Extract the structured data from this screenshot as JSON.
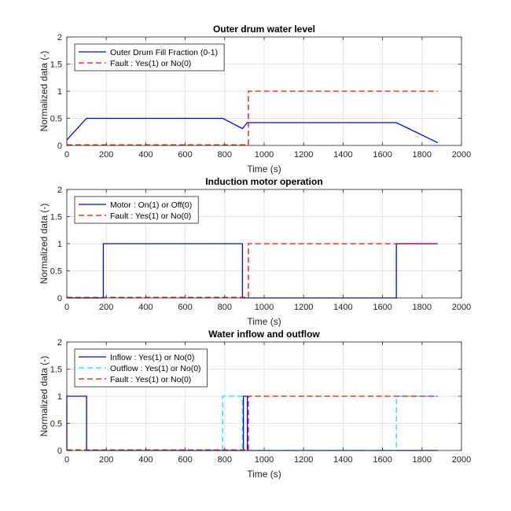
{
  "chart_data": [
    {
      "type": "line",
      "title": "Outer drum water level",
      "xlabel": "Time (s)",
      "ylabel": "Normalized data (-)",
      "xlim": [
        0,
        2000
      ],
      "ylim": [
        0,
        2
      ],
      "xticks": [
        "0",
        "200",
        "400",
        "600",
        "800",
        "1000",
        "1200",
        "1400",
        "1600",
        "1800",
        "2000"
      ],
      "yticks": [
        "0",
        "0.5",
        "1",
        "1.5",
        "2"
      ],
      "grid": true,
      "legend_position": "top-left",
      "series": [
        {
          "name": "Outer Drum Fill Fraction (0-1)",
          "color": "#0000ff",
          "style": "solid",
          "x": [
            0,
            100,
            790,
            890,
            915,
            1670,
            1880
          ],
          "y": [
            0.1,
            0.5,
            0.5,
            0.31,
            0.42,
            0.42,
            0.05
          ]
        },
        {
          "name": "Fault : Yes(1) or No(0)",
          "color": "#ff0000",
          "style": "dashed",
          "x": [
            0,
            920,
            920,
            1880
          ],
          "y": [
            0.01,
            0.01,
            1,
            1
          ]
        }
      ]
    },
    {
      "type": "line",
      "title": "Induction motor operation",
      "xlabel": "Time (s)",
      "ylabel": "Normalized data (-)",
      "xlim": [
        0,
        2000
      ],
      "ylim": [
        0,
        2
      ],
      "xticks": [
        "0",
        "200",
        "400",
        "600",
        "800",
        "1000",
        "1200",
        "1400",
        "1600",
        "1800",
        "2000"
      ],
      "yticks": [
        "0",
        "0.5",
        "1",
        "1.5",
        "2"
      ],
      "grid": true,
      "legend_position": "top-left",
      "series": [
        {
          "name": "Motor : On(1) or Off(0)",
          "color": "#0000ff",
          "style": "solid",
          "x": [
            0,
            185,
            185,
            890,
            890,
            1670,
            1670,
            1880
          ],
          "y": [
            0,
            0,
            1,
            1,
            0,
            0,
            1,
            1
          ]
        },
        {
          "name": "Fault : Yes(1) or No(0)",
          "color": "#ff0000",
          "style": "dashed",
          "x": [
            0,
            920,
            920,
            1880
          ],
          "y": [
            0.01,
            0.01,
            1,
            1
          ]
        }
      ]
    },
    {
      "type": "line",
      "title": "Water inflow and outflow",
      "xlabel": "Time (s)",
      "ylabel": "Normalized data (-)",
      "xlim": [
        0,
        2000
      ],
      "ylim": [
        0,
        2
      ],
      "xticks": [
        "0",
        "200",
        "400",
        "600",
        "800",
        "1000",
        "1200",
        "1400",
        "1600",
        "1800",
        "2000"
      ],
      "yticks": [
        "0",
        "0.5",
        "1",
        "1.5",
        "2"
      ],
      "grid": true,
      "legend_position": "top-left",
      "series": [
        {
          "name": "Inflow : Yes(1) or No(0)",
          "color": "#0000ff",
          "style": "solid",
          "x": [
            0,
            0,
            100,
            100,
            895,
            895,
            915,
            915,
            1880
          ],
          "y": [
            0,
            1,
            1,
            0,
            0,
            1,
            1,
            0,
            0
          ]
        },
        {
          "name": "Outflow : Yes(1) or No(0)",
          "color": "#00e5ff",
          "style": "dashed",
          "x": [
            0,
            790,
            790,
            890,
            890,
            1670,
            1670,
            1880
          ],
          "y": [
            0,
            0,
            1,
            1,
            0,
            0,
            1,
            1
          ]
        },
        {
          "name": "Fault : Yes(1) or No(0)",
          "color": "#ff0000",
          "style": "dashed",
          "x": [
            0,
            920,
            920,
            1880
          ],
          "y": [
            0.01,
            0.01,
            1,
            1
          ]
        }
      ]
    }
  ]
}
